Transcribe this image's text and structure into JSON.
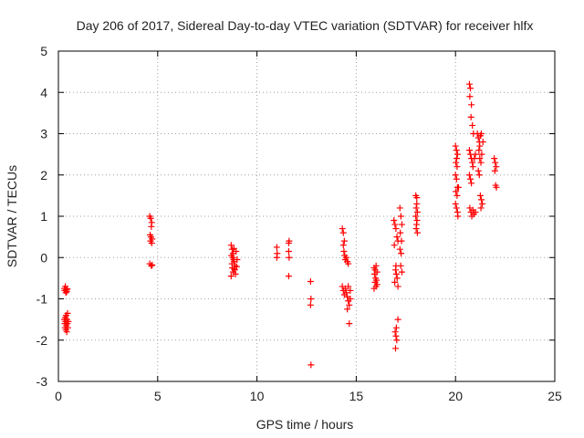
{
  "chart_data": {
    "type": "scatter",
    "title": "Day 206 of 2017, Sidereal Day-to-day VTEC variation (SDTVAR) for receiver hlfx",
    "xlabel": "GPS time / hours",
    "ylabel": "SDTVAR / TECUs",
    "xlim": [
      0,
      25
    ],
    "ylim": [
      -3,
      5
    ],
    "xticks": [
      0,
      5,
      10,
      15,
      20,
      25
    ],
    "yticks": [
      -3,
      -2,
      -1,
      0,
      1,
      2,
      3,
      4,
      5
    ],
    "xtick_labels": [
      "0",
      "5",
      "10",
      "15",
      "20",
      "25"
    ],
    "ytick_labels": [
      "-3",
      "-2",
      "-1",
      "0",
      "1",
      "2",
      "3",
      "4",
      "5"
    ],
    "grid": true,
    "marker": "+",
    "color": "#ff0000",
    "series": [
      {
        "name": "SDTVAR",
        "points": [
          [
            0.3,
            -0.75
          ],
          [
            0.32,
            -0.8
          ],
          [
            0.35,
            -0.7
          ],
          [
            0.38,
            -0.85
          ],
          [
            0.4,
            -0.78
          ],
          [
            0.42,
            -0.82
          ],
          [
            0.45,
            -0.76
          ],
          [
            0.3,
            -1.5
          ],
          [
            0.32,
            -1.6
          ],
          [
            0.33,
            -1.7
          ],
          [
            0.35,
            -1.45
          ],
          [
            0.36,
            -1.55
          ],
          [
            0.38,
            -1.75
          ],
          [
            0.39,
            -1.4
          ],
          [
            0.4,
            -1.65
          ],
          [
            0.42,
            -1.8
          ],
          [
            0.43,
            -1.5
          ],
          [
            0.45,
            -1.6
          ],
          [
            0.46,
            -1.35
          ],
          [
            0.48,
            -1.7
          ],
          [
            0.5,
            -1.55
          ],
          [
            4.6,
            1.0
          ],
          [
            4.65,
            0.95
          ],
          [
            4.7,
            0.85
          ],
          [
            4.68,
            0.75
          ],
          [
            4.62,
            0.55
          ],
          [
            4.66,
            0.5
          ],
          [
            4.72,
            0.45
          ],
          [
            4.64,
            0.4
          ],
          [
            4.7,
            0.35
          ],
          [
            4.6,
            -0.15
          ],
          [
            4.68,
            -0.2
          ],
          [
            4.72,
            -0.18
          ],
          [
            8.7,
            0.3
          ],
          [
            8.75,
            0.2
          ],
          [
            8.8,
            0.1
          ],
          [
            8.72,
            0.05
          ],
          [
            8.78,
            0.0
          ],
          [
            8.82,
            -0.05
          ],
          [
            8.85,
            -0.1
          ],
          [
            8.74,
            -0.15
          ],
          [
            8.9,
            -0.2
          ],
          [
            8.76,
            -0.25
          ],
          [
            8.88,
            -0.3
          ],
          [
            8.8,
            -0.35
          ],
          [
            8.92,
            -0.4
          ],
          [
            8.7,
            -0.45
          ],
          [
            8.95,
            0.15
          ],
          [
            9.0,
            -0.05
          ],
          [
            8.86,
            -0.28
          ],
          [
            8.98,
            -0.22
          ],
          [
            8.84,
            0.22
          ],
          [
            11.0,
            0.25
          ],
          [
            11.02,
            0.1
          ],
          [
            11.0,
            0.0
          ],
          [
            11.6,
            0.35
          ],
          [
            11.62,
            0.4
          ],
          [
            11.6,
            0.15
          ],
          [
            11.62,
            0.0
          ],
          [
            11.6,
            -0.45
          ],
          [
            12.7,
            -0.58
          ],
          [
            12.72,
            -1.0
          ],
          [
            12.7,
            -1.15
          ],
          [
            12.72,
            -2.6
          ],
          [
            14.3,
            0.7
          ],
          [
            14.35,
            0.6
          ],
          [
            14.4,
            0.4
          ],
          [
            14.38,
            0.15
          ],
          [
            14.42,
            0.05
          ],
          [
            14.45,
            -0.05
          ],
          [
            14.5,
            0.0
          ],
          [
            14.55,
            -0.1
          ],
          [
            14.6,
            -0.15
          ],
          [
            14.35,
            0.3
          ],
          [
            14.3,
            -0.7
          ],
          [
            14.35,
            -0.8
          ],
          [
            14.4,
            -0.9
          ],
          [
            14.45,
            -0.75
          ],
          [
            14.5,
            -0.85
          ],
          [
            14.55,
            -0.95
          ],
          [
            14.6,
            -1.05
          ],
          [
            14.65,
            -1.15
          ],
          [
            14.7,
            -1.0
          ],
          [
            14.55,
            -1.25
          ],
          [
            14.6,
            -0.7
          ],
          [
            14.65,
            -1.6
          ],
          [
            14.7,
            -0.8
          ],
          [
            15.9,
            -0.25
          ],
          [
            15.95,
            -0.3
          ],
          [
            16.0,
            -0.2
          ],
          [
            16.05,
            -0.35
          ],
          [
            15.92,
            -0.4
          ],
          [
            15.98,
            -0.5
          ],
          [
            16.02,
            -0.55
          ],
          [
            15.95,
            -0.6
          ],
          [
            16.0,
            -0.7
          ],
          [
            15.9,
            -0.75
          ],
          [
            16.05,
            -0.65
          ],
          [
            16.9,
            0.9
          ],
          [
            16.95,
            0.8
          ],
          [
            17.0,
            0.7
          ],
          [
            17.05,
            0.5
          ],
          [
            17.1,
            0.4
          ],
          [
            16.92,
            0.3
          ],
          [
            16.98,
            -0.3
          ],
          [
            17.02,
            -0.4
          ],
          [
            17.06,
            -0.5
          ],
          [
            16.94,
            -0.6
          ],
          [
            17.1,
            -0.7
          ],
          [
            17.0,
            -0.2
          ],
          [
            16.96,
            -1.8
          ],
          [
            17.0,
            -1.9
          ],
          [
            17.04,
            -2.0
          ],
          [
            16.98,
            -2.2
          ],
          [
            17.02,
            -1.7
          ],
          [
            17.1,
            -1.5
          ],
          [
            17.2,
            1.2
          ],
          [
            17.25,
            1.0
          ],
          [
            17.3,
            0.8
          ],
          [
            17.22,
            0.6
          ],
          [
            17.28,
            0.4
          ],
          [
            17.2,
            0.2
          ],
          [
            17.26,
            0.1
          ],
          [
            17.24,
            -0.2
          ],
          [
            17.3,
            -0.35
          ],
          [
            18.0,
            1.5
          ],
          [
            18.05,
            1.45
          ],
          [
            18.02,
            1.2
          ],
          [
            18.08,
            1.1
          ],
          [
            18.0,
            1.0
          ],
          [
            18.06,
            0.9
          ],
          [
            18.04,
            0.8
          ],
          [
            18.02,
            0.7
          ],
          [
            18.08,
            0.6
          ],
          [
            18.05,
            1.3
          ],
          [
            20.0,
            2.7
          ],
          [
            20.05,
            2.6
          ],
          [
            20.1,
            2.5
          ],
          [
            20.02,
            2.3
          ],
          [
            20.08,
            2.2
          ],
          [
            20.0,
            2.0
          ],
          [
            20.05,
            1.9
          ],
          [
            20.1,
            1.7
          ],
          [
            20.02,
            1.6
          ],
          [
            20.08,
            1.5
          ],
          [
            20.0,
            1.3
          ],
          [
            20.05,
            1.2
          ],
          [
            20.1,
            1.1
          ],
          [
            20.12,
            1.0
          ],
          [
            20.15,
            1.7
          ],
          [
            20.06,
            2.4
          ],
          [
            20.7,
            4.2
          ],
          [
            20.75,
            4.1
          ],
          [
            20.72,
            3.9
          ],
          [
            20.8,
            3.7
          ],
          [
            20.78,
            3.4
          ],
          [
            20.85,
            3.2
          ],
          [
            20.9,
            3.0
          ],
          [
            20.7,
            2.6
          ],
          [
            20.75,
            2.5
          ],
          [
            20.8,
            2.4
          ],
          [
            20.85,
            2.3
          ],
          [
            20.88,
            2.2
          ],
          [
            20.7,
            2.0
          ],
          [
            20.75,
            1.9
          ],
          [
            20.8,
            1.8
          ],
          [
            20.72,
            1.2
          ],
          [
            20.78,
            1.1
          ],
          [
            20.82,
            1.0
          ],
          [
            20.88,
            1.15
          ],
          [
            20.92,
            1.05
          ],
          [
            20.95,
            2.4
          ],
          [
            21.0,
            2.5
          ],
          [
            21.0,
            1.1
          ],
          [
            21.1,
            3.0
          ],
          [
            21.15,
            2.9
          ],
          [
            21.2,
            2.8
          ],
          [
            21.25,
            2.95
          ],
          [
            21.3,
            3.0
          ],
          [
            21.18,
            2.6
          ],
          [
            21.22,
            2.4
          ],
          [
            21.28,
            2.3
          ],
          [
            21.15,
            2.1
          ],
          [
            21.2,
            2.0
          ],
          [
            21.25,
            1.5
          ],
          [
            21.3,
            1.4
          ],
          [
            21.35,
            1.3
          ],
          [
            21.28,
            1.2
          ],
          [
            21.22,
            2.7
          ],
          [
            21.32,
            2.5
          ],
          [
            21.38,
            2.8
          ],
          [
            21.95,
            2.4
          ],
          [
            22.0,
            2.3
          ],
          [
            22.05,
            2.2
          ],
          [
            21.98,
            2.1
          ],
          [
            22.02,
            1.75
          ],
          [
            22.06,
            1.7
          ]
        ]
      }
    ]
  }
}
